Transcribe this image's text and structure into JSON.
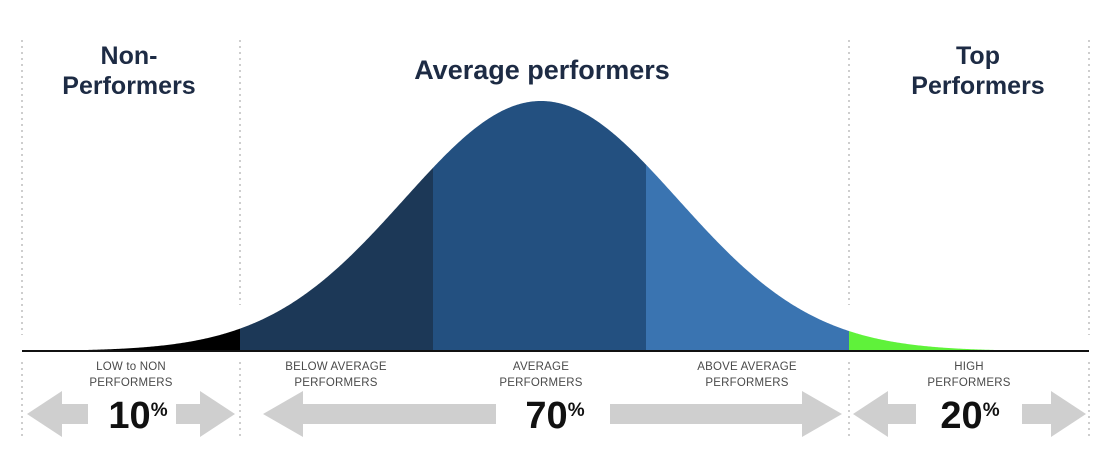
{
  "headings": {
    "non_line1": "Non-",
    "non_line2": "Performers",
    "average": "Average performers",
    "top_line1": "Top",
    "top_line2": "Performers"
  },
  "segments": [
    {
      "label_line1": "LOW to NON",
      "label_line2": "PERFORMERS",
      "color": "#000000"
    },
    {
      "label_line1": "BELOW AVERAGE",
      "label_line2": "PERFORMERS",
      "color": "#1c3857"
    },
    {
      "label_line1": "AVERAGE",
      "label_line2": "PERFORMERS",
      "color": "#235080"
    },
    {
      "label_line1": "ABOVE AVERAGE",
      "label_line2": "PERFORMERS",
      "color": "#3a74b1"
    },
    {
      "label_line1": "HIGH",
      "label_line2": "PERFORMERS",
      "color": "#5ff23a"
    }
  ],
  "groups": [
    {
      "value": "10",
      "unit": "%"
    },
    {
      "value": "70",
      "unit": "%"
    },
    {
      "value": "20",
      "unit": "%"
    }
  ],
  "colors": {
    "arrow": "#cfcfcf",
    "baseline": "#111111",
    "divider": "#bdbdbd",
    "heading": "#1d2b44"
  }
}
